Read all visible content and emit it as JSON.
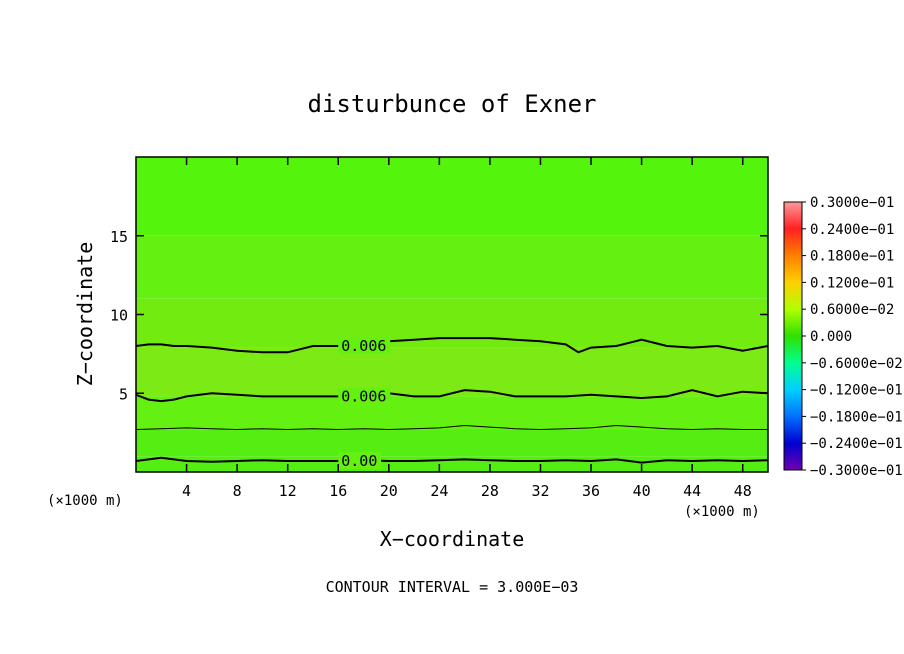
{
  "chart_data": {
    "type": "heatmap",
    "title": "disturbunce of Exner",
    "xlabel": "X−coordinate",
    "ylabel": "Z−coordinate",
    "x_unit": "(×1000 m)",
    "y_unit": "(×1000 m)",
    "xlim": [
      0,
      50
    ],
    "ylim": [
      0,
      20
    ],
    "x_ticks": [
      4,
      8,
      12,
      16,
      20,
      24,
      28,
      32,
      36,
      40,
      44,
      48
    ],
    "y_ticks": [
      5,
      10,
      15
    ],
    "x_tick_labels": [
      "4",
      "8",
      "12",
      "16",
      "20",
      "24",
      "28",
      "32",
      "36",
      "40",
      "44",
      "48"
    ],
    "y_tick_labels": [
      "5",
      "10",
      "15"
    ],
    "field_layers": [
      {
        "from_z": 0,
        "to_z": 1,
        "value": 0.0
      },
      {
        "from_z": 1,
        "to_z": 2.7,
        "value": 0.0015
      },
      {
        "from_z": 2.7,
        "to_z": 4.8,
        "value": 0.0045
      },
      {
        "from_z": 4.8,
        "to_z": 7.9,
        "value": 0.0075
      },
      {
        "from_z": 7.9,
        "to_z": 11,
        "value": 0.006
      },
      {
        "from_z": 11,
        "to_z": 15,
        "value": 0.0045
      },
      {
        "from_z": 15,
        "to_z": 20,
        "value": 0.003
      }
    ],
    "contours": [
      {
        "label": "0.00",
        "label_x": 16,
        "x": [
          0,
          1,
          2,
          3,
          4,
          6,
          8,
          10,
          12,
          14,
          16,
          18,
          20,
          22,
          24,
          26,
          28,
          30,
          32,
          34,
          36,
          38,
          40,
          42,
          44,
          46,
          48,
          50
        ],
        "z": [
          0.7,
          0.8,
          0.9,
          0.8,
          0.7,
          0.65,
          0.7,
          0.75,
          0.7,
          0.7,
          0.7,
          0.75,
          0.7,
          0.7,
          0.75,
          0.8,
          0.75,
          0.7,
          0.7,
          0.75,
          0.7,
          0.8,
          0.6,
          0.75,
          0.7,
          0.75,
          0.7,
          0.75
        ]
      },
      {
        "label": "",
        "label_x": null,
        "x": [
          0,
          2,
          4,
          6,
          8,
          10,
          12,
          14,
          16,
          18,
          20,
          22,
          24,
          26,
          28,
          30,
          32,
          34,
          36,
          38,
          40,
          42,
          44,
          46,
          48,
          50
        ],
        "z": [
          2.7,
          2.75,
          2.8,
          2.75,
          2.7,
          2.75,
          2.7,
          2.75,
          2.7,
          2.75,
          2.7,
          2.75,
          2.8,
          2.95,
          2.85,
          2.75,
          2.7,
          2.75,
          2.8,
          2.95,
          2.85,
          2.75,
          2.7,
          2.75,
          2.7,
          2.7
        ]
      },
      {
        "label": "0.006",
        "label_x": 16,
        "x": [
          0,
          1,
          2,
          3,
          4,
          6,
          8,
          10,
          12,
          14,
          16,
          18,
          20,
          22,
          24,
          26,
          28,
          30,
          32,
          34,
          36,
          38,
          40,
          42,
          44,
          46,
          48,
          50
        ],
        "z": [
          4.9,
          4.6,
          4.5,
          4.6,
          4.8,
          5.0,
          4.9,
          4.8,
          4.8,
          4.8,
          4.8,
          4.9,
          5.0,
          4.8,
          4.8,
          5.2,
          5.1,
          4.8,
          4.8,
          4.8,
          4.9,
          4.8,
          4.7,
          4.8,
          5.2,
          4.8,
          5.1,
          5.0
        ]
      },
      {
        "label": "0.006",
        "label_x": 16,
        "x": [
          0,
          1,
          2,
          3,
          4,
          6,
          8,
          10,
          12,
          14,
          16,
          18,
          20,
          22,
          24,
          26,
          28,
          30,
          32,
          34,
          35,
          36,
          38,
          40,
          42,
          44,
          46,
          48,
          50
        ],
        "z": [
          8.0,
          8.1,
          8.1,
          8.0,
          8.0,
          7.9,
          7.7,
          7.6,
          7.6,
          8.0,
          8.0,
          8.1,
          8.3,
          8.4,
          8.5,
          8.5,
          8.5,
          8.4,
          8.3,
          8.1,
          7.6,
          7.9,
          8.0,
          8.4,
          8.0,
          7.9,
          8.0,
          7.7,
          8.0
        ]
      }
    ],
    "colorbar": {
      "labels": [
        "0.3000e−01",
        "0.2400e−01",
        "0.1800e−01",
        "0.1200e−01",
        "0.6000e−02",
        "0.000",
        "−0.6000e−02",
        "−0.1200e−01",
        "−0.1800e−01",
        "−0.2400e−01",
        "−0.3000e−01"
      ],
      "colors_top_to_bottom": [
        "#ff9a9a",
        "#ff2020",
        "#ff8000",
        "#ffd000",
        "#b0ff00",
        "#30e000",
        "#00ff90",
        "#00d0ff",
        "#0070ff",
        "#0000d0",
        "#7000b0"
      ]
    },
    "colormap": {
      "0.0": "#44dd18",
      "0.0015": "#55ee12",
      "0.003": "#55f40c",
      "0.0045": "#64f010",
      "0.006": "#72ec10",
      "0.0075": "#7cea14"
    },
    "grid": false
  },
  "footer": {
    "contour_interval": "CONTOUR INTERVAL = 3.000E−03"
  }
}
